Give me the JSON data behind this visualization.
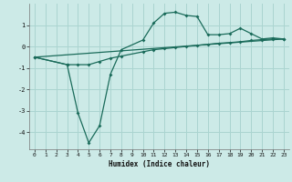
{
  "xlabel": "Humidex (Indice chaleur)",
  "bg_color": "#cceae7",
  "grid_color": "#aad4d0",
  "line_color": "#1a6b5a",
  "line1_x": [
    0,
    3,
    4,
    5,
    6,
    7,
    8,
    10,
    11,
    12,
    13,
    14,
    15,
    16,
    17,
    18,
    19,
    20,
    21,
    22,
    23
  ],
  "line1_y": [
    -0.5,
    -0.85,
    -3.1,
    -4.5,
    -3.7,
    -1.3,
    -0.15,
    0.3,
    1.1,
    1.55,
    1.6,
    1.45,
    1.4,
    0.55,
    0.55,
    0.6,
    0.85,
    0.6,
    0.35,
    0.4,
    0.35
  ],
  "line2_x": [
    0,
    23
  ],
  "line2_y": [
    -0.5,
    0.35
  ],
  "line3_x": [
    0,
    3,
    4,
    5,
    6,
    7,
    8,
    10,
    11,
    12,
    13,
    14,
    15,
    16,
    17,
    18,
    19,
    20,
    21,
    22,
    23
  ],
  "line3_y": [
    -0.5,
    -0.85,
    -0.85,
    -0.85,
    -0.7,
    -0.55,
    -0.45,
    -0.25,
    -0.15,
    -0.1,
    -0.05,
    0.0,
    0.05,
    0.1,
    0.15,
    0.18,
    0.22,
    0.28,
    0.32,
    0.35,
    0.35
  ],
  "xlim": [
    -0.5,
    23.5
  ],
  "ylim": [
    -4.8,
    2.0
  ],
  "yticks": [
    -4,
    -3,
    -2,
    -1,
    0,
    1
  ],
  "xticks": [
    0,
    1,
    2,
    3,
    4,
    5,
    6,
    7,
    8,
    9,
    10,
    11,
    12,
    13,
    14,
    15,
    16,
    17,
    18,
    19,
    20,
    21,
    22,
    23
  ]
}
